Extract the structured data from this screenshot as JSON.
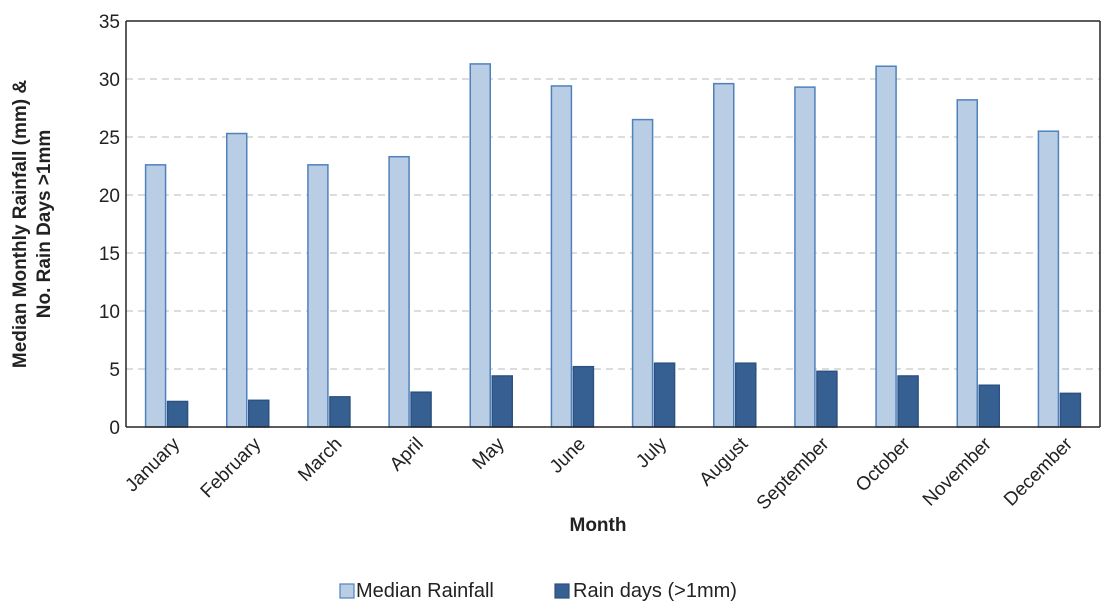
{
  "chart_data": {
    "type": "bar",
    "title": "",
    "xlabel": "Month",
    "ylabel_line1": "Median Monthly Rainfall (mm) &",
    "ylabel_line2": "No. Rain Days >1mm",
    "ylim": [
      0,
      35
    ],
    "yticks": [
      0,
      5,
      10,
      15,
      20,
      25,
      30,
      35
    ],
    "ytick_labels": [
      "0",
      "5",
      "10",
      "15",
      "20",
      "25",
      "30",
      "35"
    ],
    "grid": true,
    "legend_position": "bottom",
    "categories": [
      "January",
      "February",
      "March",
      "April",
      "May",
      "June",
      "July",
      "August",
      "September",
      "October",
      "November",
      "December"
    ],
    "series": [
      {
        "name": "Median Rainfall",
        "color": "#b9cde5",
        "stroke": "#4f81bd",
        "values": [
          22.6,
          25.3,
          22.6,
          23.3,
          31.3,
          29.4,
          26.5,
          29.6,
          29.3,
          31.1,
          28.2,
          25.5
        ]
      },
      {
        "name": "Rain days (>1mm)",
        "color": "#376092",
        "stroke": "#2c5282",
        "values": [
          2.2,
          2.3,
          2.6,
          3.0,
          4.4,
          5.2,
          5.5,
          5.5,
          4.8,
          4.4,
          3.6,
          2.9
        ]
      }
    ]
  }
}
